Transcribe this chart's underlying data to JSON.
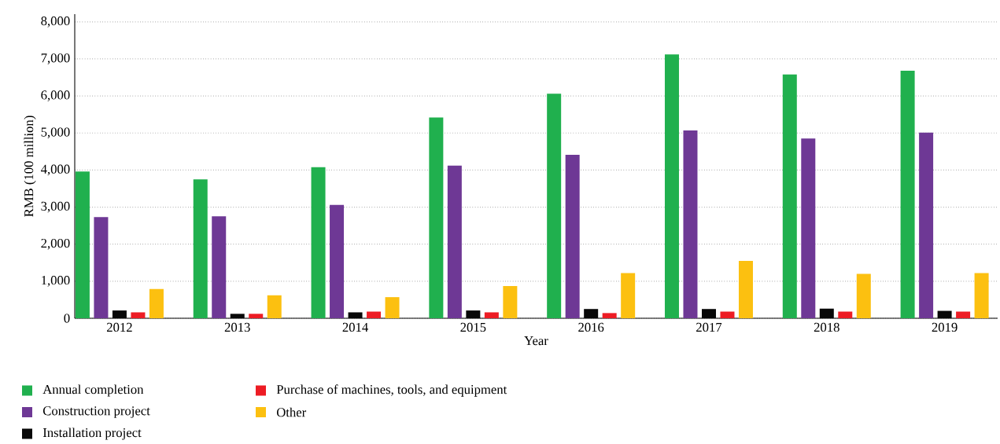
{
  "chart_data": {
    "type": "bar",
    "xlabel": "Year",
    "ylabel": "RMB (100 million)",
    "categories": [
      "2012",
      "2013",
      "2014",
      "2015",
      "2016",
      "2017",
      "2018",
      "2019"
    ],
    "series": [
      {
        "name": "Annual completion",
        "color": "#20b04e",
        "values": [
          3960,
          3750,
          4080,
          5420,
          6060,
          7120,
          6580,
          6680
        ]
      },
      {
        "name": "Construction project",
        "color": "#6e3895",
        "values": [
          2730,
          2750,
          3060,
          4120,
          4410,
          5070,
          4850,
          5010
        ]
      },
      {
        "name": "Installation project",
        "color": "#080808",
        "values": [
          210,
          120,
          160,
          210,
          250,
          250,
          260,
          200
        ]
      },
      {
        "name": "Purchase of machines, tools, and equipment",
        "color": "#ed1c24",
        "values": [
          160,
          120,
          180,
          160,
          140,
          180,
          180,
          180
        ]
      },
      {
        "name": "Other",
        "color": "#fcc010",
        "values": [
          790,
          620,
          570,
          870,
          1220,
          1550,
          1200,
          1220
        ]
      }
    ],
    "ylim": [
      0,
      8000
    ],
    "yticks": [
      {
        "value": 0,
        "label": "0"
      },
      {
        "value": 1000,
        "label": "1,000"
      },
      {
        "value": 2000,
        "label": "2,000"
      },
      {
        "value": 3000,
        "label": "3,000"
      },
      {
        "value": 4000,
        "label": "4,000"
      },
      {
        "value": 5000,
        "label": "5,000"
      },
      {
        "value": 6000,
        "label": "6,000"
      },
      {
        "value": 7000,
        "label": "7,000"
      },
      {
        "value": 8000,
        "label": "8,000"
      }
    ],
    "grid": "y",
    "legend": "bottom"
  }
}
